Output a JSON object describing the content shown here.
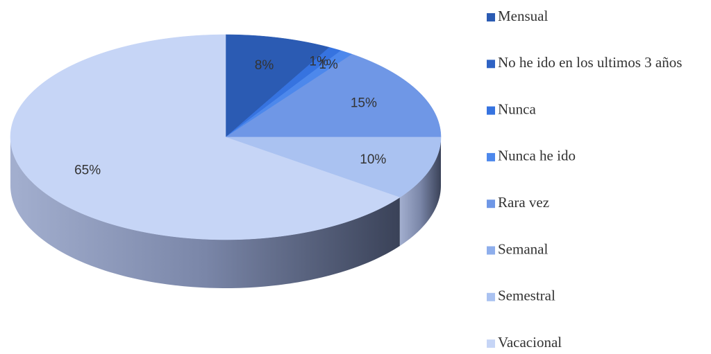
{
  "chart_data": {
    "type": "pie",
    "categories": [
      "Mensual",
      "No he ido en los ultimos 3 años",
      "Nunca",
      "Nunca he ido",
      "Rara vez",
      "Semanal",
      "Semestral",
      "Vacacional"
    ],
    "values": [
      8,
      0,
      1,
      1,
      15,
      0,
      10,
      65
    ],
    "value_labels": [
      "8%",
      null,
      "1%",
      "1%",
      "15%",
      null,
      "10%",
      "65%"
    ],
    "colors": [
      "#2b5bb3",
      "#2f63c4",
      "#3673e0",
      "#4d88ec",
      "#6f97e6",
      "#8eaeec",
      "#aac2f1",
      "#c6d5f6"
    ],
    "legend": "right"
  }
}
